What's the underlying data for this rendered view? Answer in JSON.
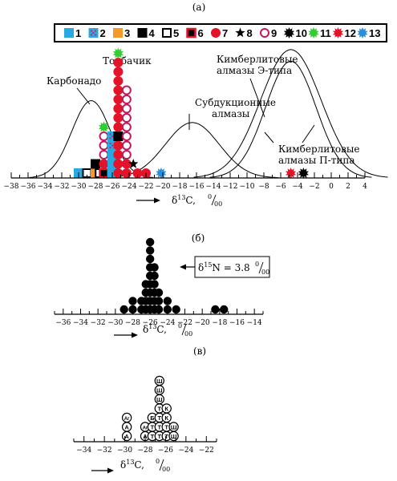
{
  "chart_data": [
    {
      "type": "scatter",
      "title": "(а)",
      "xlabel": "δ13C, ‰",
      "xlabel_main": "δ",
      "xlabel_sup": "13",
      "xlabel_tail": "C,",
      "xlabel_unit_num": "0",
      "xlabel_unit_den": "00",
      "xlim": [
        -38,
        4
      ],
      "x_ticks": [
        "−38",
        "−36",
        "−34",
        "−32",
        "−30",
        "−28",
        "−26",
        "−24",
        "−22",
        "−20",
        "−18",
        "−16",
        "−14",
        "−12",
        "−10",
        "−8",
        "−6",
        "−4",
        "−2",
        "0",
        "2",
        "4"
      ],
      "legend": [
        {
          "num": "1",
          "marker": "square",
          "color": "#2aa9e0"
        },
        {
          "num": "2",
          "marker": "square-dotted",
          "color": "#2aa9e0"
        },
        {
          "num": "3",
          "marker": "square",
          "color": "#f39a2b"
        },
        {
          "num": "4",
          "marker": "square",
          "color": "#000000"
        },
        {
          "num": "5",
          "marker": "square-open",
          "color": "#000000"
        },
        {
          "num": "6",
          "marker": "square-red-open",
          "color": "#e3132a"
        },
        {
          "num": "7",
          "marker": "circle",
          "color": "#e3132a"
        },
        {
          "num": "8",
          "marker": "star5",
          "color": "#000000"
        },
        {
          "num": "9",
          "marker": "circle-open",
          "color": "#c2185b"
        },
        {
          "num": "10",
          "marker": "burst",
          "color": "#000000"
        },
        {
          "num": "11",
          "marker": "burst",
          "color": "#33cc33"
        },
        {
          "num": "12",
          "marker": "burst",
          "color": "#e3132a"
        },
        {
          "num": "13",
          "marker": "burst",
          "color": "#2a8fd8"
        }
      ],
      "curves": [
        {
          "name": "Карбонадо",
          "peak_x": -28.5,
          "sigma": 2.3,
          "height": 0.53
        },
        {
          "name": "Субдукционные алмазы",
          "peak_x": -16.5,
          "sigma": 3.2,
          "height": 0.38
        },
        {
          "name": "Кимберлитовые алмазы Э-типа",
          "peak_x": -4.8,
          "sigma": 3.6,
          "height": 0.88
        },
        {
          "name": "Кимберлитовые алмазы П-типа",
          "peak_x": -4.8,
          "sigma": 3.0,
          "height": 0.8
        }
      ],
      "annotations": {
        "karbonado": "Карбонадо",
        "tolbachik": "Толбачик",
        "subduction_l1": "Субдукционные",
        "subduction_l2": "алмазы",
        "kimE_l1": "Кимберлитовые",
        "kimE_l2": "алмазы Э-типа",
        "kimP_l1": "Кимберлитовые",
        "kimP_l2": "алмазы П-типа"
      },
      "points": [
        {
          "x": -30.0,
          "level": 0,
          "marker": 1
        },
        {
          "x": -29.0,
          "level": 0,
          "marker": 5
        },
        {
          "x": -28.0,
          "level": 0,
          "marker": 3
        },
        {
          "x": -28.0,
          "level": 1,
          "marker": 4
        },
        {
          "x": -27.5,
          "level": 0,
          "marker": 5
        },
        {
          "x": -27.0,
          "level": 0,
          "marker": 6
        },
        {
          "x": -27.0,
          "level": 1,
          "marker": 7
        },
        {
          "x": -27.0,
          "level": 2,
          "marker": 9
        },
        {
          "x": -27.0,
          "level": 3,
          "marker": 9
        },
        {
          "x": -27.0,
          "level": 4,
          "marker": 9
        },
        {
          "x": -27.0,
          "level": 5,
          "marker": 11
        },
        {
          "x": -26.0,
          "level": 0,
          "marker": 1
        },
        {
          "x": -26.0,
          "level": 1,
          "marker": 1
        },
        {
          "x": -26.0,
          "level": 2,
          "marker": 1
        },
        {
          "x": -26.0,
          "level": 3,
          "marker": 2
        },
        {
          "x": -26.0,
          "level": 4,
          "marker": 2
        },
        {
          "x": -25.3,
          "level": 0,
          "marker": 7
        },
        {
          "x": -25.3,
          "level": 1,
          "marker": 7
        },
        {
          "x": -25.3,
          "level": 2,
          "marker": 7
        },
        {
          "x": -25.3,
          "level": 3,
          "marker": 7
        },
        {
          "x": -25.3,
          "level": 4,
          "marker": 4
        },
        {
          "x": -25.3,
          "level": 5,
          "marker": 7
        },
        {
          "x": -25.3,
          "level": 6,
          "marker": 7
        },
        {
          "x": -25.3,
          "level": 7,
          "marker": 7
        },
        {
          "x": -25.3,
          "level": 8,
          "marker": 7
        },
        {
          "x": -25.3,
          "level": 9,
          "marker": 7
        },
        {
          "x": -25.3,
          "level": 10,
          "marker": 7
        },
        {
          "x": -25.3,
          "level": 11,
          "marker": 7
        },
        {
          "x": -25.3,
          "level": 12,
          "marker": 7
        },
        {
          "x": -25.3,
          "level": 13,
          "marker": 11
        },
        {
          "x": -24.3,
          "level": 0,
          "marker": 7
        },
        {
          "x": -24.3,
          "level": 1,
          "marker": 7
        },
        {
          "x": -24.3,
          "level": 2,
          "marker": 9
        },
        {
          "x": -24.3,
          "level": 3,
          "marker": 9
        },
        {
          "x": -24.3,
          "level": 4,
          "marker": 9
        },
        {
          "x": -24.3,
          "level": 5,
          "marker": 9
        },
        {
          "x": -24.3,
          "level": 6,
          "marker": 9
        },
        {
          "x": -24.3,
          "level": 7,
          "marker": 9
        },
        {
          "x": -24.3,
          "level": 8,
          "marker": 9
        },
        {
          "x": -24.3,
          "level": 9,
          "marker": 9
        },
        {
          "x": -23.5,
          "level": 1,
          "marker": 8
        },
        {
          "x": -23.0,
          "level": 0,
          "marker": 7
        },
        {
          "x": -22.0,
          "level": 0,
          "marker": 7
        },
        {
          "x": -20.2,
          "level": 0,
          "marker": 13
        },
        {
          "x": -4.8,
          "level": 0,
          "marker": 12
        },
        {
          "x": -3.3,
          "level": 0,
          "marker": 10
        }
      ]
    },
    {
      "type": "scatter",
      "title": "(б)",
      "xlabel": "δ13C, ‰",
      "xlabel_main": "δ",
      "xlabel_sup": "13",
      "xlabel_tail": "C,",
      "xlabel_unit_num": "0",
      "xlabel_unit_den": "00",
      "xlim": [
        -37,
        -13
      ],
      "x_ticks": [
        "−36",
        "−34",
        "−32",
        "−30",
        "−28",
        "−26",
        "−24",
        "−22",
        "−20",
        "−18",
        "−16",
        "−14"
      ],
      "annotation_main": "δ",
      "annotation_sup": "15",
      "annotation_text": "N = 3.8",
      "annotation_unit_num": "0",
      "annotation_unit_den": "00",
      "columns": [
        {
          "x": -29.0,
          "count": 1
        },
        {
          "x": -28.0,
          "count": 2
        },
        {
          "x": -27.0,
          "count": 2
        },
        {
          "x": -26.5,
          "count": 4
        },
        {
          "x": -26.0,
          "count": 9
        },
        {
          "x": -25.5,
          "count": 6
        },
        {
          "x": -25.0,
          "count": 3
        },
        {
          "x": -24.0,
          "count": 2
        },
        {
          "x": -23.0,
          "count": 1
        },
        {
          "x": -18.5,
          "count": 1
        },
        {
          "x": -17.5,
          "count": 1
        }
      ]
    },
    {
      "type": "scatter",
      "title": "(в)",
      "xlabel": "δ13C, ‰",
      "xlabel_main": "δ",
      "xlabel_sup": "13",
      "xlabel_tail": "C,",
      "xlabel_unit_num": "0",
      "xlabel_unit_den": "00",
      "xlim": [
        -35,
        -21
      ],
      "x_ticks": [
        "−34",
        "−32",
        "−30",
        "−28",
        "−26",
        "−24",
        "−22"
      ],
      "columns": [
        {
          "x": -29.8,
          "labels": [
            "А",
            "А",
            "Аг"
          ]
        },
        {
          "x": -28.0,
          "labels": [
            "А",
            "Аг"
          ]
        },
        {
          "x": -27.3,
          "labels": [
            "Т",
            "Т",
            "Б"
          ]
        },
        {
          "x": -26.6,
          "labels": [
            "Т",
            "Т",
            "Т",
            "Т",
            "Ш",
            "Ш",
            "Ш"
          ]
        },
        {
          "x": -25.9,
          "labels": [
            "Т",
            "Т",
            "К",
            "К"
          ]
        },
        {
          "x": -25.2,
          "labels": [
            "Ш",
            "Ш"
          ]
        }
      ]
    }
  ]
}
